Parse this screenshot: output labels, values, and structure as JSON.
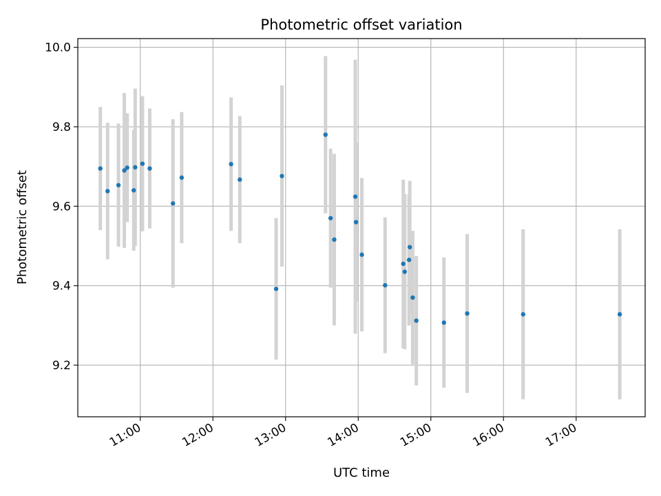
{
  "chart_data": {
    "type": "scatter",
    "title": "Photometric offset variation",
    "xlabel": "UTC time",
    "ylabel": "Photometric offset",
    "xlim": [
      10.14,
      17.95
    ],
    "ylim": [
      9.07,
      10.022
    ],
    "x_ticks": [
      {
        "value": 11,
        "label": "11:00"
      },
      {
        "value": 12,
        "label": "12:00"
      },
      {
        "value": 13,
        "label": "13:00"
      },
      {
        "value": 14,
        "label": "14:00"
      },
      {
        "value": 15,
        "label": "15:00"
      },
      {
        "value": 16,
        "label": "16:00"
      },
      {
        "value": 17,
        "label": "17:00"
      }
    ],
    "y_ticks": [
      {
        "value": 9.2,
        "label": "9.2"
      },
      {
        "value": 9.4,
        "label": "9.4"
      },
      {
        "value": 9.6,
        "label": "9.6"
      },
      {
        "value": 9.8,
        "label": "9.8"
      },
      {
        "value": 10.0,
        "label": "10.0"
      }
    ],
    "grid": true,
    "point_color": "#1f77b4",
    "errorbar_color": "#d3d3d3",
    "points": [
      {
        "x": 10.45,
        "y": 9.695,
        "err": 0.155
      },
      {
        "x": 10.55,
        "y": 9.638,
        "err": 0.172
      },
      {
        "x": 10.7,
        "y": 9.653,
        "err": 0.155
      },
      {
        "x": 10.78,
        "y": 9.69,
        "err": 0.195
      },
      {
        "x": 10.82,
        "y": 9.697,
        "err": 0.137
      },
      {
        "x": 10.91,
        "y": 9.64,
        "err": 0.152
      },
      {
        "x": 10.93,
        "y": 9.698,
        "err": 0.198
      },
      {
        "x": 11.03,
        "y": 9.707,
        "err": 0.17
      },
      {
        "x": 11.13,
        "y": 9.695,
        "err": 0.151
      },
      {
        "x": 11.45,
        "y": 9.607,
        "err": 0.212
      },
      {
        "x": 11.57,
        "y": 9.672,
        "err": 0.165
      },
      {
        "x": 12.25,
        "y": 9.706,
        "err": 0.168
      },
      {
        "x": 12.37,
        "y": 9.667,
        "err": 0.16
      },
      {
        "x": 12.87,
        "y": 9.392,
        "err": 0.178
      },
      {
        "x": 12.95,
        "y": 9.676,
        "err": 0.228
      },
      {
        "x": 13.55,
        "y": 9.78,
        "err": 0.198
      },
      {
        "x": 13.62,
        "y": 9.57,
        "err": 0.175
      },
      {
        "x": 13.67,
        "y": 9.516,
        "err": 0.216
      },
      {
        "x": 13.96,
        "y": 9.624,
        "err": 0.345
      },
      {
        "x": 13.97,
        "y": 9.56,
        "err": 0.2
      },
      {
        "x": 14.05,
        "y": 9.478,
        "err": 0.193
      },
      {
        "x": 14.37,
        "y": 9.401,
        "err": 0.171
      },
      {
        "x": 14.62,
        "y": 9.455,
        "err": 0.212
      },
      {
        "x": 14.64,
        "y": 9.435,
        "err": 0.195
      },
      {
        "x": 14.7,
        "y": 9.465,
        "err": 0.165
      },
      {
        "x": 14.71,
        "y": 9.497,
        "err": 0.167
      },
      {
        "x": 14.75,
        "y": 9.37,
        "err": 0.168
      },
      {
        "x": 14.8,
        "y": 9.312,
        "err": 0.163
      },
      {
        "x": 15.18,
        "y": 9.307,
        "err": 0.164
      },
      {
        "x": 15.5,
        "y": 9.33,
        "err": 0.2
      },
      {
        "x": 16.27,
        "y": 9.328,
        "err": 0.214
      },
      {
        "x": 17.6,
        "y": 9.328,
        "err": 0.214
      }
    ]
  }
}
